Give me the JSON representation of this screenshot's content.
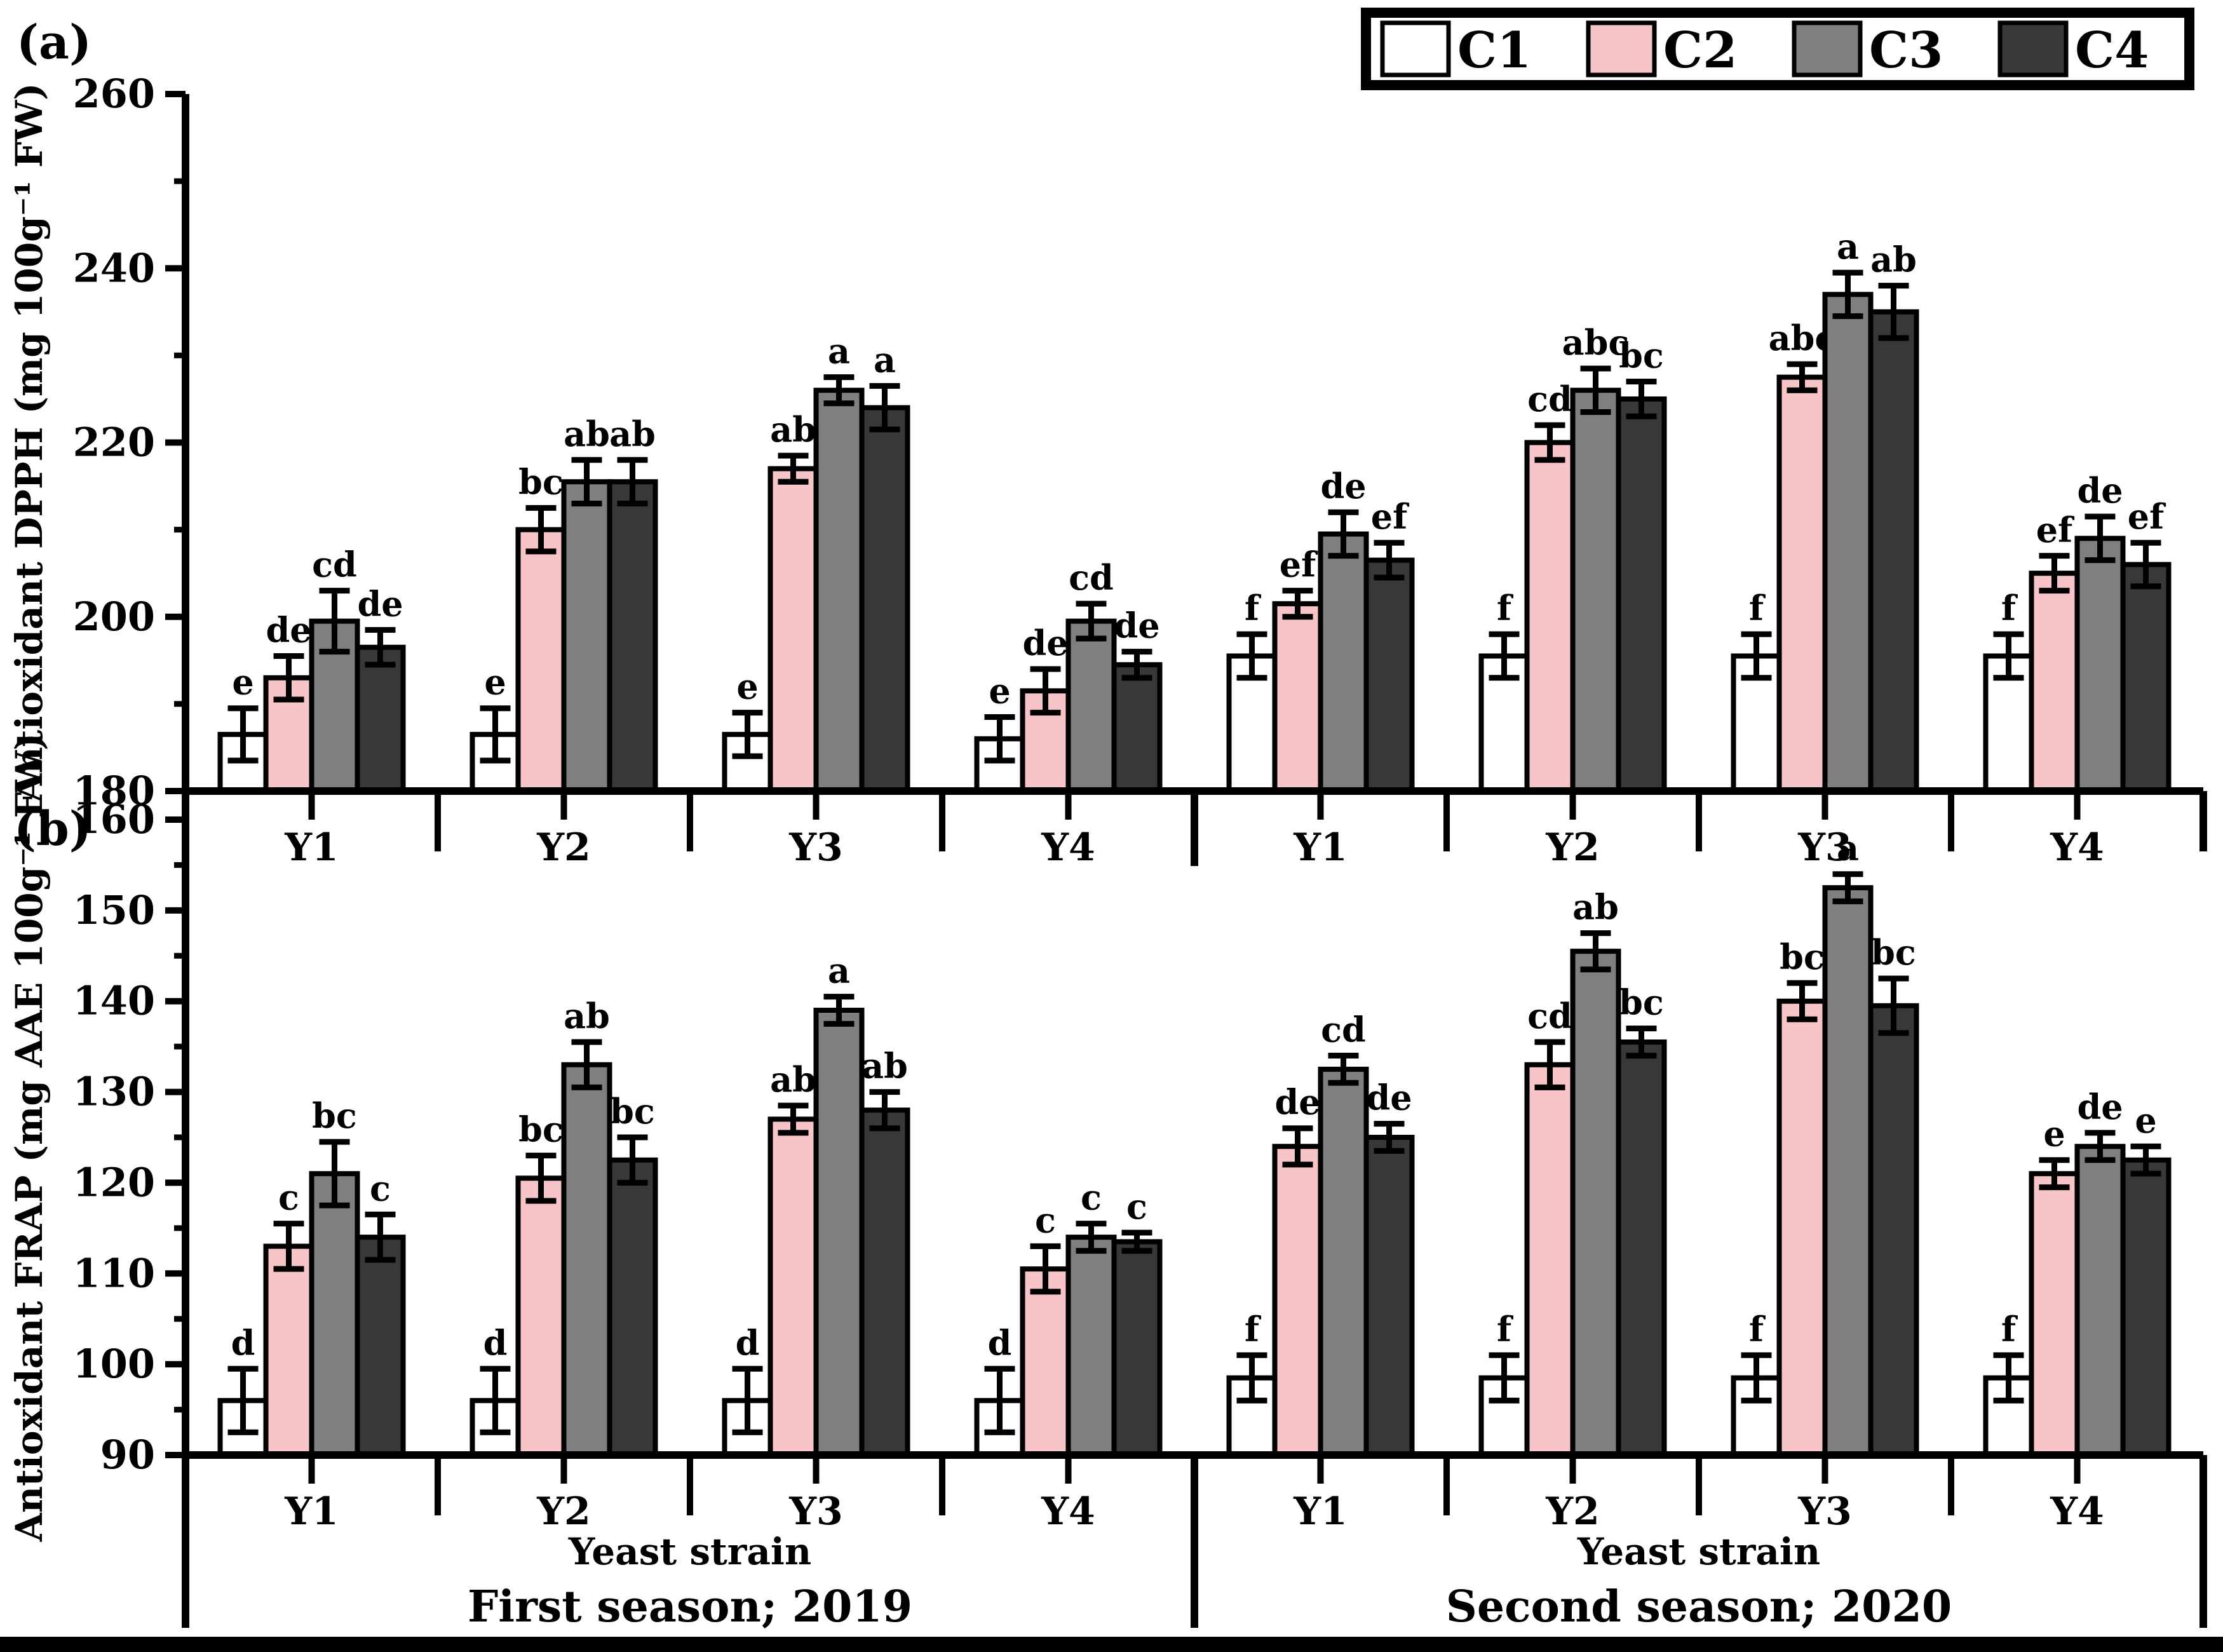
{
  "figure": {
    "panel_a_label": "(a)",
    "panel_b_label": "(b)",
    "legend": {
      "entries": [
        {
          "label": "C1",
          "color": "#FFFFFF"
        },
        {
          "label": "C2",
          "color": "#F7C5C8"
        },
        {
          "label": "C3",
          "color": "#7F7F7F"
        },
        {
          "label": "C4",
          "color": "#383838"
        }
      ]
    },
    "colors": {
      "axis": "#000000",
      "bar_stroke": "#000000",
      "text": "#000000",
      "bottom_strip": "#000000"
    }
  },
  "chart_data": [
    {
      "type": "bar",
      "panel": "a",
      "ylabel": "Antioxidant DPPH (mg 100g⁻¹ FW)",
      "ylim": [
        180,
        260
      ],
      "yticks_major": [
        180,
        200,
        220,
        240,
        260
      ],
      "yticks_minor": [
        190,
        210,
        230,
        250
      ],
      "grid": false,
      "legend_position": "top-right",
      "categories": [
        "Y1",
        "Y2",
        "Y3",
        "Y4",
        "Y1",
        "Y2",
        "Y3",
        "Y4"
      ],
      "series": [
        {
          "name": "C1",
          "color": "#FFFFFF",
          "values": [
            186.5,
            186.5,
            186.5,
            186,
            195.5,
            195.5,
            195.5,
            195.5
          ],
          "errors": [
            3,
            3,
            2.5,
            2.5,
            2.5,
            2.5,
            2.5,
            2.5
          ],
          "letters": [
            "e",
            "e",
            "e",
            "e",
            "f",
            "f",
            "f",
            "f"
          ]
        },
        {
          "name": "C2",
          "color": "#F7C5C8",
          "values": [
            193,
            210,
            217,
            191.5,
            201.5,
            220,
            227.5,
            205
          ],
          "errors": [
            2.5,
            2.5,
            1.5,
            2.5,
            1.5,
            2,
            1.5,
            2
          ],
          "letters": [
            "de",
            "bc",
            "ab",
            "de",
            "ef",
            "cd",
            "abc",
            "ef"
          ]
        },
        {
          "name": "C3",
          "color": "#7F7F7F",
          "values": [
            199.5,
            215.5,
            226,
            199.5,
            209.5,
            226,
            237,
            209
          ],
          "errors": [
            3.5,
            2.5,
            1.5,
            2,
            2.5,
            2.5,
            2.5,
            2.5
          ],
          "letters": [
            "cd",
            "ab",
            "a",
            "cd",
            "de",
            "abc",
            "a",
            "de"
          ]
        },
        {
          "name": "C4",
          "color": "#383838",
          "values": [
            196.5,
            215.5,
            224,
            194.5,
            206.5,
            225,
            235,
            206
          ],
          "errors": [
            2,
            2.5,
            2.5,
            1.5,
            2,
            2,
            3,
            2.5
          ],
          "letters": [
            "de",
            "ab",
            "a",
            "de",
            "ef",
            "bc",
            "ab",
            "ef"
          ]
        }
      ]
    },
    {
      "type": "bar",
      "panel": "b",
      "ylabel": "Antioxidant FRAP (mg AAE 100g⁻¹ FW)",
      "ylim": [
        90,
        160
      ],
      "yticks_major": [
        90,
        100,
        110,
        120,
        130,
        140,
        150,
        160
      ],
      "yticks_minor": [
        95,
        105,
        115,
        125,
        135,
        145,
        155
      ],
      "grid": false,
      "categories": [
        "Y1",
        "Y2",
        "Y3",
        "Y4",
        "Y1",
        "Y2",
        "Y3",
        "Y4"
      ],
      "xlabel": "Yeast strain",
      "season_labels": [
        "First season; 2019",
        "Second season; 2020"
      ],
      "series": [
        {
          "name": "C1",
          "color": "#FFFFFF",
          "values": [
            96,
            96,
            96,
            96,
            98.5,
            98.5,
            98.5,
            98.5
          ],
          "errors": [
            3.5,
            3.5,
            3.5,
            3.5,
            2.5,
            2.5,
            2.5,
            2.5
          ],
          "letters": [
            "d",
            "d",
            "d",
            "d",
            "f",
            "f",
            "f",
            "f"
          ]
        },
        {
          "name": "C2",
          "color": "#F7C5C8",
          "values": [
            113,
            120.5,
            127,
            110.5,
            124,
            133,
            140,
            121
          ],
          "errors": [
            2.5,
            2.5,
            1.5,
            2.5,
            2,
            2.5,
            2,
            1.5
          ],
          "letters": [
            "c",
            "bc",
            "ab",
            "c",
            "de",
            "cd",
            "bc",
            "e"
          ]
        },
        {
          "name": "C3",
          "color": "#7F7F7F",
          "values": [
            121,
            133,
            139,
            114,
            132.5,
            145.5,
            152.5,
            124
          ],
          "errors": [
            3.5,
            2.5,
            1.5,
            1.5,
            1.5,
            2,
            1.5,
            1.5
          ],
          "letters": [
            "bc",
            "ab",
            "a",
            "c",
            "cd",
            "ab",
            "a",
            "de"
          ]
        },
        {
          "name": "C4",
          "color": "#383838",
          "values": [
            114,
            122.5,
            128,
            113.5,
            125,
            135.5,
            139.5,
            122.5
          ],
          "errors": [
            2.5,
            2.5,
            2,
            1,
            1.5,
            1.5,
            3,
            1.5
          ],
          "letters": [
            "c",
            "bc",
            "ab",
            "c",
            "de",
            "bc",
            "bc",
            "e"
          ]
        }
      ]
    }
  ]
}
